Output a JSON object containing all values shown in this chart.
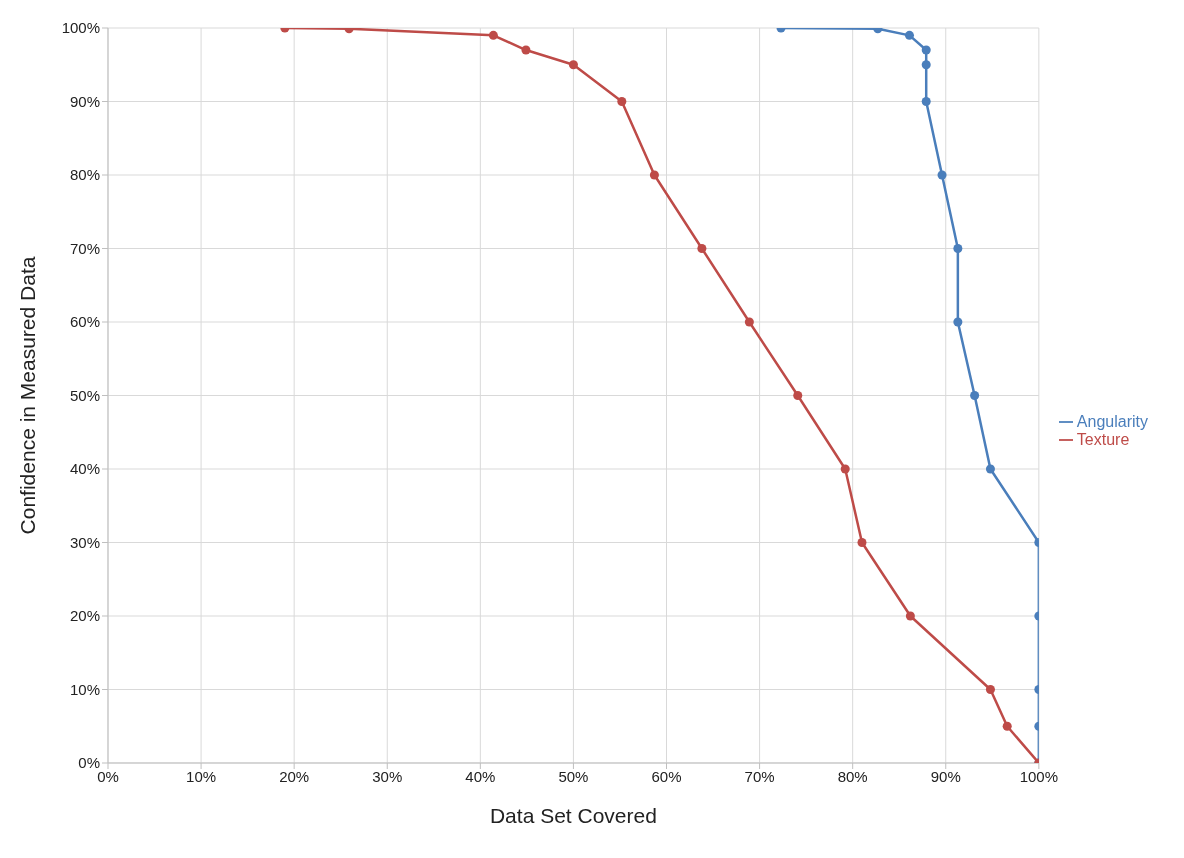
{
  "chart_data": {
    "type": "line",
    "xlabel": "Data Set Covered",
    "ylabel": "Confidence in Measured Data",
    "series": [
      {
        "name": "Angularity",
        "color": "#4a7ebb",
        "x": [
          72.3,
          82.7,
          86.1,
          87.9,
          87.9,
          87.9,
          89.6,
          91.3,
          91.3,
          93.1,
          94.8,
          100,
          100,
          100,
          100,
          100
        ],
        "values": [
          100,
          99.9,
          99,
          97,
          95,
          90,
          80,
          70,
          60,
          50,
          40,
          30,
          20,
          10,
          5,
          0
        ]
      },
      {
        "name": "Texture",
        "color": "#be4b48",
        "x": [
          19.0,
          25.9,
          41.4,
          44.9,
          50.0,
          55.2,
          58.7,
          63.8,
          68.9,
          74.1,
          79.2,
          81.0,
          86.2,
          94.8,
          96.6,
          100
        ],
        "values": [
          100,
          99.9,
          99,
          97,
          95,
          90,
          80,
          70,
          60,
          50,
          40,
          30,
          20,
          10,
          5,
          0
        ]
      }
    ],
    "xlim": [
      0,
      100
    ],
    "ylim": [
      0,
      100
    ],
    "xticks": [
      {
        "value": 0,
        "label": "0%"
      },
      {
        "value": 10,
        "label": "10%"
      },
      {
        "value": 20,
        "label": "20%"
      },
      {
        "value": 30,
        "label": "30%"
      },
      {
        "value": 40,
        "label": "40%"
      },
      {
        "value": 50,
        "label": "50%"
      },
      {
        "value": 60,
        "label": "60%"
      },
      {
        "value": 70,
        "label": "70%"
      },
      {
        "value": 80,
        "label": "80%"
      },
      {
        "value": 90,
        "label": "90%"
      },
      {
        "value": 100,
        "label": "100%"
      }
    ],
    "yticks": [
      {
        "value": 0,
        "label": "0%"
      },
      {
        "value": 10,
        "label": "10%"
      },
      {
        "value": 20,
        "label": "20%"
      },
      {
        "value": 30,
        "label": "30%"
      },
      {
        "value": 40,
        "label": "40%"
      },
      {
        "value": 50,
        "label": "50%"
      },
      {
        "value": 60,
        "label": "60%"
      },
      {
        "value": 70,
        "label": "70%"
      },
      {
        "value": 80,
        "label": "80%"
      },
      {
        "value": 90,
        "label": "90%"
      },
      {
        "value": 100,
        "label": "100%"
      }
    ],
    "grid": true,
    "legend": "right",
    "marker": "circle",
    "line_style": "solid"
  }
}
